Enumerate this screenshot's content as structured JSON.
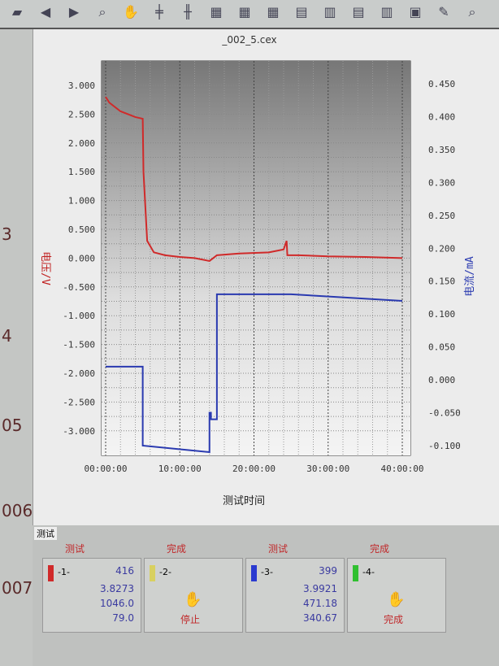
{
  "toolbar": {
    "icons": [
      "open-icon",
      "back-icon",
      "forward-icon",
      "zoom-icon",
      "hand-icon",
      "split-h-icon",
      "split-v-icon",
      "grid-icon",
      "grid-icon",
      "grid-icon",
      "table-icon",
      "doc-icon",
      "table-icon",
      "doc-icon",
      "layout-icon",
      "edit-icon",
      "search-icon"
    ]
  },
  "side_labels": [
    "3",
    "4",
    "05",
    "006",
    "007"
  ],
  "bottom": {
    "tab": "测试",
    "cards": [
      {
        "channel": "-1-",
        "status": "测试",
        "count": "416",
        "voltage": "3.8273",
        "capacity": "1046.0",
        "energy": "79.0",
        "color": "#d02a2a"
      },
      {
        "channel": "-2-",
        "status": "完成",
        "action": "停止",
        "color": "#d8d060"
      },
      {
        "channel": "-3-",
        "status": "测试",
        "count": "399",
        "voltage": "3.9921",
        "capacity": "471.18",
        "energy": "340.67",
        "color": "#2a3ad0"
      },
      {
        "channel": "-4-",
        "status": "完成",
        "action": "完成",
        "color": "#30c030"
      }
    ]
  },
  "chart_data": {
    "type": "line",
    "title": "_002_5.cex",
    "xlabel": "测试时间",
    "ylabel": "电压/V",
    "y2label": "电流/mA",
    "xlim": [
      0,
      40
    ],
    "xticks": [
      "00:00:00",
      "10:00:00",
      "20:00:00",
      "30:00:00",
      "40:00:00"
    ],
    "ylim": [
      -3.3,
      3.3
    ],
    "yticks": [
      "3.000",
      "2.500",
      "2.000",
      "1.500",
      "1.000",
      "0.500",
      "0.000",
      "-0.500",
      "-1.000",
      "-1.500",
      "-2.000",
      "-2.500",
      "-3.000"
    ],
    "y2lim": [
      -0.12,
      0.47
    ],
    "y2ticks": [
      "0.450",
      "0.400",
      "0.350",
      "0.300",
      "0.250",
      "0.200",
      "0.150",
      "0.100",
      "0.050",
      "0.000",
      "-0.050",
      "-0.100"
    ],
    "grid": true,
    "series": [
      {
        "axis": "left",
        "color": "#d02a2a",
        "x": [
          0,
          0.5,
          2,
          4,
          5,
          5.1,
          5.6,
          6.5,
          8,
          10,
          12,
          14,
          14.5,
          15,
          18,
          22,
          24,
          24.4,
          24.5,
          26,
          30,
          35,
          40
        ],
        "y": [
          2.8,
          2.7,
          2.55,
          2.45,
          2.42,
          1.5,
          0.3,
          0.1,
          0.05,
          0.02,
          0.0,
          -0.05,
          0.0,
          0.05,
          0.08,
          0.1,
          0.15,
          0.3,
          0.05,
          0.05,
          0.03,
          0.02,
          0.0
        ]
      },
      {
        "axis": "right",
        "color": "#2a3ab0",
        "x": [
          0,
          5,
          5,
          14,
          14,
          14.2,
          14.2,
          15,
          15,
          25,
          40
        ],
        "y": [
          0.02,
          0.02,
          -0.1,
          -0.11,
          -0.05,
          -0.05,
          -0.06,
          -0.06,
          0.13,
          0.13,
          0.12
        ]
      }
    ]
  }
}
